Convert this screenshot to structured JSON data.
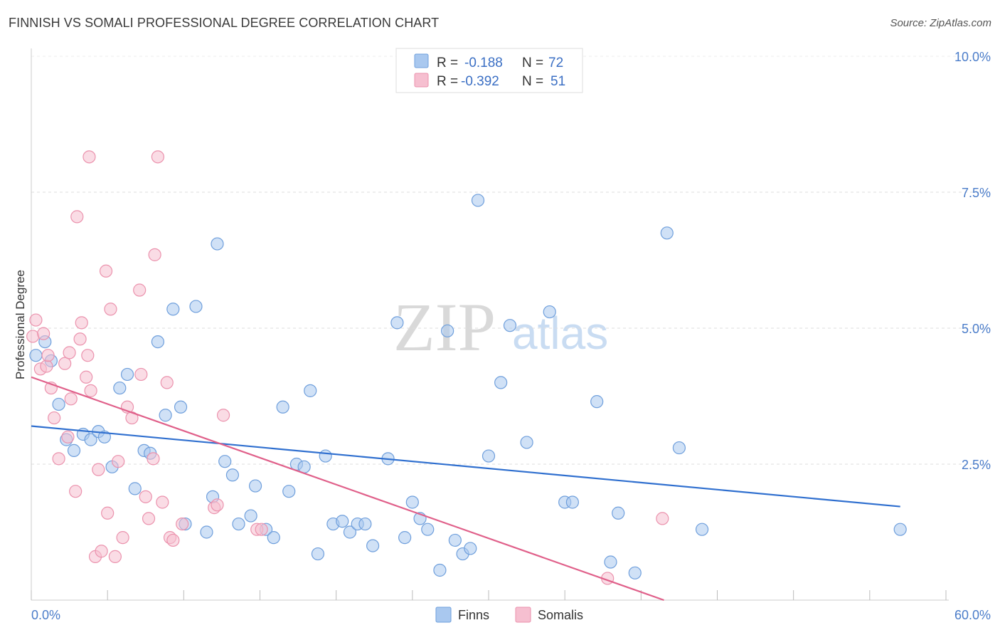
{
  "header": {
    "title": "FINNISH VS SOMALI PROFESSIONAL DEGREE CORRELATION CHART",
    "source": "Source: ZipAtlas.com"
  },
  "watermark": {
    "zip": "ZIP",
    "atlas": "atlas"
  },
  "chart_data": {
    "type": "scatter",
    "title": "FINNISH VS SOMALI PROFESSIONAL DEGREE CORRELATION CHART",
    "xlabel": "",
    "ylabel": "Professional Degree",
    "xlim": [
      0,
      60
    ],
    "ylim": [
      0,
      10.5
    ],
    "x_tick_labels": [
      "0.0%",
      "60.0%"
    ],
    "y_ticks": [
      {
        "value": 2.5,
        "label": "2.5%"
      },
      {
        "value": 5.0,
        "label": "5.0%"
      },
      {
        "value": 7.5,
        "label": "7.5%"
      },
      {
        "value": 10.0,
        "label": "10.0%"
      }
    ],
    "legend": {
      "rows": [
        {
          "r_label": "R =",
          "r_value": "-0.188",
          "n_label": "N =",
          "n_value": "72"
        },
        {
          "r_label": "R =",
          "r_value": "-0.392",
          "n_label": "N =",
          "n_value": "51"
        }
      ]
    },
    "series": [
      {
        "name": "Finns",
        "color": "#a9c8ef",
        "stroke": "#6f9fdc",
        "line_color": "#2f6fcf",
        "trend": {
          "x0": 0,
          "y0": 3.2,
          "x1": 57,
          "y1": 1.72
        },
        "points": [
          [
            0.3,
            4.5
          ],
          [
            0.9,
            4.75
          ],
          [
            1.3,
            4.4
          ],
          [
            1.8,
            3.6
          ],
          [
            2.3,
            2.95
          ],
          [
            2.8,
            2.75
          ],
          [
            3.4,
            3.05
          ],
          [
            3.9,
            2.95
          ],
          [
            4.4,
            3.1
          ],
          [
            4.8,
            3.0
          ],
          [
            5.3,
            2.45
          ],
          [
            5.8,
            3.9
          ],
          [
            6.3,
            4.15
          ],
          [
            6.8,
            2.05
          ],
          [
            7.4,
            2.75
          ],
          [
            7.8,
            2.7
          ],
          [
            8.3,
            4.75
          ],
          [
            8.8,
            3.4
          ],
          [
            9.3,
            5.35
          ],
          [
            9.8,
            3.55
          ],
          [
            10.1,
            1.4
          ],
          [
            10.8,
            5.4
          ],
          [
            11.5,
            1.25
          ],
          [
            11.9,
            1.9
          ],
          [
            12.2,
            6.55
          ],
          [
            12.7,
            2.55
          ],
          [
            13.2,
            2.3
          ],
          [
            13.6,
            1.4
          ],
          [
            14.4,
            1.55
          ],
          [
            14.7,
            2.1
          ],
          [
            15.4,
            1.3
          ],
          [
            15.9,
            1.15
          ],
          [
            16.5,
            3.55
          ],
          [
            16.9,
            2.0
          ],
          [
            17.4,
            2.5
          ],
          [
            17.9,
            2.45
          ],
          [
            18.3,
            3.85
          ],
          [
            18.8,
            0.85
          ],
          [
            19.3,
            2.65
          ],
          [
            19.8,
            1.4
          ],
          [
            20.4,
            1.45
          ],
          [
            20.9,
            1.25
          ],
          [
            21.4,
            1.4
          ],
          [
            21.9,
            1.4
          ],
          [
            22.4,
            1.0
          ],
          [
            23.4,
            2.6
          ],
          [
            24.0,
            5.1
          ],
          [
            24.5,
            1.15
          ],
          [
            25.0,
            1.8
          ],
          [
            25.5,
            1.5
          ],
          [
            26.0,
            1.3
          ],
          [
            26.8,
            0.55
          ],
          [
            27.3,
            4.95
          ],
          [
            27.8,
            1.1
          ],
          [
            28.3,
            0.85
          ],
          [
            28.8,
            0.95
          ],
          [
            29.3,
            7.35
          ],
          [
            30.0,
            2.65
          ],
          [
            30.8,
            4.0
          ],
          [
            31.4,
            5.05
          ],
          [
            32.5,
            2.9
          ],
          [
            34.0,
            5.3
          ],
          [
            35.0,
            1.8
          ],
          [
            35.5,
            1.8
          ],
          [
            37.1,
            3.65
          ],
          [
            38.0,
            0.7
          ],
          [
            38.5,
            1.6
          ],
          [
            39.6,
            0.5
          ],
          [
            41.7,
            6.75
          ],
          [
            42.5,
            2.8
          ],
          [
            44.0,
            1.3
          ],
          [
            57.0,
            1.3
          ]
        ]
      },
      {
        "name": "Somalis",
        "color": "#f6bfd0",
        "stroke": "#eb92ad",
        "line_color": "#e0608a",
        "trend": {
          "x0": 0,
          "y0": 4.1,
          "x1": 41.5,
          "y1": 0.0
        },
        "points": [
          [
            0.1,
            4.85
          ],
          [
            0.3,
            5.15
          ],
          [
            0.6,
            4.25
          ],
          [
            0.8,
            4.9
          ],
          [
            1.0,
            4.3
          ],
          [
            1.1,
            4.5
          ],
          [
            1.3,
            3.9
          ],
          [
            1.5,
            3.35
          ],
          [
            1.8,
            2.6
          ],
          [
            2.2,
            4.35
          ],
          [
            2.4,
            3.0
          ],
          [
            2.5,
            4.55
          ],
          [
            2.6,
            3.7
          ],
          [
            2.9,
            2.0
          ],
          [
            3.0,
            7.05
          ],
          [
            3.2,
            4.8
          ],
          [
            3.3,
            5.1
          ],
          [
            3.6,
            4.1
          ],
          [
            3.7,
            4.5
          ],
          [
            3.8,
            8.15
          ],
          [
            3.9,
            3.85
          ],
          [
            4.2,
            0.8
          ],
          [
            4.4,
            2.4
          ],
          [
            4.6,
            0.9
          ],
          [
            4.9,
            6.05
          ],
          [
            5.0,
            1.6
          ],
          [
            5.2,
            5.35
          ],
          [
            5.5,
            0.8
          ],
          [
            5.7,
            2.55
          ],
          [
            6.0,
            1.15
          ],
          [
            6.3,
            3.55
          ],
          [
            6.6,
            3.35
          ],
          [
            7.1,
            5.7
          ],
          [
            7.2,
            4.15
          ],
          [
            7.5,
            1.9
          ],
          [
            7.7,
            1.5
          ],
          [
            8.0,
            2.6
          ],
          [
            8.1,
            6.35
          ],
          [
            8.3,
            8.15
          ],
          [
            8.6,
            1.8
          ],
          [
            8.9,
            4.0
          ],
          [
            9.1,
            1.15
          ],
          [
            9.3,
            1.1
          ],
          [
            9.9,
            1.4
          ],
          [
            12.0,
            1.7
          ],
          [
            12.2,
            1.75
          ],
          [
            12.6,
            3.4
          ],
          [
            14.8,
            1.3
          ],
          [
            15.1,
            1.3
          ],
          [
            37.8,
            0.4
          ],
          [
            41.4,
            1.5
          ]
        ]
      }
    ]
  }
}
